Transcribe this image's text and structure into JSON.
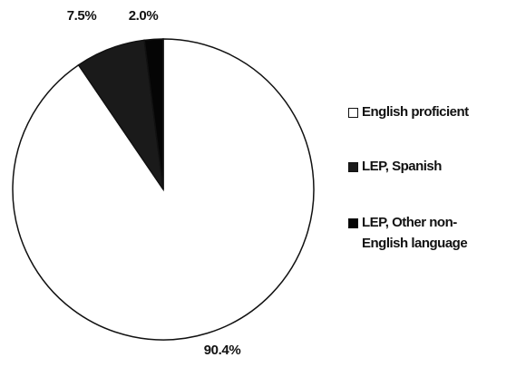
{
  "chart_data": {
    "type": "pie",
    "categories": [
      "English proficient",
      "LEP, Spanish",
      "LEP, Other non-English language"
    ],
    "values": [
      90.4,
      7.5,
      2.0
    ],
    "value_labels": [
      "90.4%",
      "7.5%",
      "2.0%"
    ],
    "colors": [
      "#ffffff",
      "#1a1a1a",
      "#050505"
    ],
    "legend": "right"
  }
}
